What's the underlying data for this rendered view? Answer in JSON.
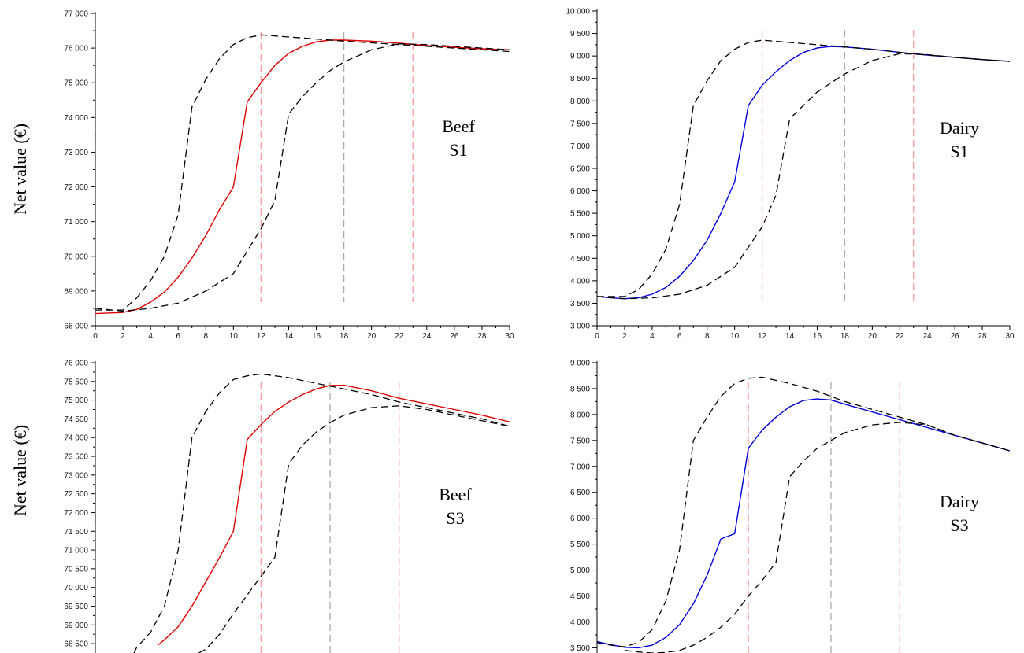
{
  "figure": {
    "ylabel_top": "Net value (€)",
    "ylabel_bottom": "Net value (€)"
  },
  "chart_data": [
    {
      "type": "line",
      "annotation": [
        "Beef",
        "S1"
      ],
      "xlim": [
        0,
        30
      ],
      "ylim": [
        68000,
        77000
      ],
      "xticks": [
        0,
        2,
        4,
        6,
        8,
        10,
        12,
        14,
        16,
        18,
        20,
        22,
        24,
        26,
        28,
        30
      ],
      "yticks": [
        68000,
        69000,
        70000,
        71000,
        72000,
        73000,
        74000,
        75000,
        76000,
        77000
      ],
      "ytick_labels": [
        "68 000",
        "69 000",
        "70 000",
        "71 000",
        "72 000",
        "73 000",
        "74 000",
        "75 000",
        "76 000",
        "77 000"
      ],
      "vlines": [
        {
          "x": 12,
          "color": "#ff9999"
        },
        {
          "x": 18,
          "color": "#aaaaaa"
        },
        {
          "x": 23,
          "color": "#ff9999"
        }
      ],
      "series": [
        {
          "style": "solid",
          "color": "#e00000",
          "x": [
            0,
            2,
            3,
            4,
            5,
            6,
            7,
            8,
            9,
            10,
            11,
            12,
            13,
            14,
            15,
            16,
            17,
            18,
            20,
            22,
            24,
            26,
            28,
            30
          ],
          "y": [
            68350,
            68380,
            68470,
            68680,
            68970,
            69400,
            69950,
            70600,
            71350,
            72000,
            74450,
            75000,
            75500,
            75850,
            76050,
            76180,
            76230,
            76230,
            76200,
            76140,
            76070,
            76020,
            75980,
            75950
          ]
        },
        {
          "style": "dashed",
          "color": "#000000",
          "x": [
            0,
            2,
            3,
            4,
            5,
            6,
            7,
            8,
            9,
            10,
            11,
            12,
            14,
            16,
            18,
            20,
            22,
            24,
            26,
            28,
            30
          ],
          "y": [
            68450,
            68450,
            68800,
            69300,
            70000,
            71200,
            74300,
            75100,
            75700,
            76100,
            76300,
            76380,
            76320,
            76260,
            76200,
            76150,
            76100,
            76050,
            76000,
            75950,
            75900
          ]
        },
        {
          "style": "dashed",
          "color": "#000000",
          "x": [
            0,
            2,
            4,
            6,
            8,
            10,
            12,
            13,
            14,
            15,
            16,
            17,
            18,
            20,
            22,
            24,
            26,
            28,
            30
          ],
          "y": [
            68500,
            68420,
            68500,
            68650,
            69000,
            69500,
            70800,
            71600,
            74100,
            74600,
            75000,
            75350,
            75600,
            75950,
            76120,
            76100,
            76050,
            76000,
            75950
          ]
        }
      ]
    },
    {
      "type": "line",
      "annotation": [
        "Dairy",
        "S1"
      ],
      "xlim": [
        0,
        30
      ],
      "ylim": [
        3000,
        10000
      ],
      "xticks": [
        0,
        2,
        4,
        6,
        8,
        10,
        12,
        14,
        16,
        18,
        20,
        22,
        24,
        26,
        28,
        30
      ],
      "yticks": [
        3000,
        3500,
        4000,
        4500,
        5000,
        5500,
        6000,
        6500,
        7000,
        7500,
        8000,
        8500,
        9000,
        9500,
        10000
      ],
      "ytick_labels": [
        "3 000",
        "3 500",
        "4 000",
        "4 500",
        "5 000",
        "5 500",
        "6 000",
        "6 500",
        "7 000",
        "7 500",
        "8 000",
        "8 500",
        "9 000",
        "9 500",
        "10 000"
      ],
      "vlines": [
        {
          "x": 12,
          "color": "#ff9999"
        },
        {
          "x": 18,
          "color": "#aaaaaa"
        },
        {
          "x": 23,
          "color": "#ff9999"
        }
      ],
      "series": [
        {
          "style": "solid",
          "color": "#0000dd",
          "x": [
            0,
            1,
            2,
            3,
            4,
            5,
            6,
            7,
            8,
            9,
            10,
            11,
            12,
            13,
            14,
            15,
            16,
            17,
            18,
            20,
            22,
            24,
            26,
            28,
            30
          ],
          "y": [
            3650,
            3620,
            3600,
            3620,
            3700,
            3850,
            4100,
            4450,
            4900,
            5500,
            6200,
            7900,
            8350,
            8650,
            8900,
            9080,
            9180,
            9210,
            9200,
            9150,
            9080,
            9020,
            8970,
            8920,
            8880
          ]
        },
        {
          "style": "dashed",
          "color": "#000000",
          "x": [
            0,
            2,
            3,
            4,
            5,
            6,
            7,
            8,
            9,
            10,
            11,
            12,
            14,
            16,
            18,
            20,
            22,
            24,
            26,
            28,
            30
          ],
          "y": [
            3650,
            3650,
            3800,
            4150,
            4700,
            5700,
            7900,
            8450,
            8900,
            9150,
            9300,
            9350,
            9300,
            9250,
            9200,
            9150,
            9080,
            9020,
            8970,
            8920,
            8880
          ]
        },
        {
          "style": "dashed",
          "color": "#000000",
          "x": [
            0,
            2,
            4,
            6,
            8,
            10,
            12,
            13,
            14,
            15,
            16,
            17,
            18,
            20,
            22,
            24,
            26,
            28,
            30
          ],
          "y": [
            3650,
            3600,
            3620,
            3700,
            3900,
            4300,
            5200,
            5900,
            7600,
            7900,
            8200,
            8400,
            8600,
            8900,
            9050,
            9030,
            8970,
            8920,
            8880
          ]
        }
      ]
    },
    {
      "type": "line",
      "annotation": [
        "Beef",
        "S3"
      ],
      "xlim": [
        0,
        30
      ],
      "ylim": [
        68250,
        76000
      ],
      "xticks": [],
      "yticks": [
        68500,
        69000,
        69500,
        70000,
        70500,
        71000,
        71500,
        72000,
        72500,
        73000,
        73500,
        74000,
        74500,
        75000,
        75500,
        76000
      ],
      "ytick_labels": [
        "68 500",
        "69 000",
        "69 500",
        "70 000",
        "70 500",
        "71 000",
        "71 500",
        "72 000",
        "72 500",
        "73 000",
        "73 500",
        "74 000",
        "74 500",
        "75 000",
        "75 500",
        "76 000"
      ],
      "vlines": [
        {
          "x": 12,
          "color": "#ff9999"
        },
        {
          "x": 17,
          "color": "#aaaaaa"
        },
        {
          "x": 22,
          "color": "#ff9999"
        }
      ],
      "series": [
        {
          "style": "solid",
          "color": "#e00000",
          "x": [
            4.5,
            5,
            6,
            7,
            8,
            9,
            10,
            11,
            12,
            13,
            14,
            15,
            16,
            17,
            18,
            20,
            22,
            24,
            26,
            28,
            30
          ],
          "y": [
            68450,
            68600,
            68950,
            69500,
            70150,
            70800,
            71500,
            73950,
            74350,
            74700,
            74950,
            75150,
            75300,
            75390,
            75400,
            75250,
            75050,
            74900,
            74750,
            74600,
            74420
          ]
        },
        {
          "style": "dashed",
          "color": "#000000",
          "x": [
            2.8,
            3,
            4,
            5,
            6,
            7,
            8,
            9,
            10,
            11,
            12,
            14,
            16,
            18,
            20,
            22,
            24,
            26,
            28,
            30
          ],
          "y": [
            68250,
            68400,
            68800,
            69500,
            71000,
            74000,
            74700,
            75200,
            75550,
            75650,
            75700,
            75600,
            75450,
            75300,
            75150,
            74950,
            74800,
            74650,
            74500,
            74300
          ]
        },
        {
          "style": "dashed",
          "color": "#000000",
          "x": [
            7.5,
            8,
            9,
            10,
            11,
            12,
            13,
            14,
            15,
            16,
            17,
            18,
            20,
            22,
            24,
            26,
            28,
            30
          ],
          "y": [
            68250,
            68350,
            68750,
            69300,
            69800,
            70300,
            70800,
            73300,
            73800,
            74150,
            74400,
            74600,
            74800,
            74850,
            74750,
            74600,
            74450,
            74300
          ]
        }
      ]
    },
    {
      "type": "line",
      "annotation": [
        "Dairy",
        "S3"
      ],
      "xlim": [
        0,
        30
      ],
      "ylim": [
        3400,
        9000
      ],
      "xticks": [],
      "yticks": [
        3500,
        4000,
        4500,
        5000,
        5500,
        6000,
        6500,
        7000,
        7500,
        8000,
        8500,
        9000
      ],
      "ytick_labels": [
        "3 500",
        "4 000",
        "4 500",
        "5 000",
        "5 500",
        "6 000",
        "6 500",
        "7 000",
        "7 500",
        "8 000",
        "8 500",
        "9 000"
      ],
      "vlines": [
        {
          "x": 11,
          "color": "#ff9999"
        },
        {
          "x": 17,
          "color": "#aaaaaa"
        },
        {
          "x": 22,
          "color": "#ff9999"
        }
      ],
      "series": [
        {
          "style": "solid",
          "color": "#0000dd",
          "x": [
            0,
            1,
            2,
            3,
            4,
            5,
            6,
            7,
            8,
            9,
            10,
            11,
            12,
            13,
            14,
            15,
            16,
            17,
            18,
            20,
            22,
            24,
            26,
            28,
            30
          ],
          "y": [
            3620,
            3560,
            3510,
            3500,
            3550,
            3700,
            3950,
            4350,
            4900,
            5600,
            5700,
            7350,
            7700,
            7950,
            8150,
            8270,
            8300,
            8280,
            8200,
            8050,
            7900,
            7750,
            7600,
            7450,
            7300
          ]
        },
        {
          "style": "dashed",
          "color": "#000000",
          "x": [
            0,
            1,
            2,
            3,
            4,
            5,
            6,
            7,
            8,
            9,
            10,
            11,
            12,
            14,
            16,
            18,
            20,
            22,
            24,
            26,
            28,
            30
          ],
          "y": [
            3600,
            3550,
            3520,
            3600,
            3850,
            4400,
            5400,
            7500,
            7950,
            8350,
            8600,
            8700,
            8720,
            8600,
            8450,
            8250,
            8100,
            7950,
            7800,
            7600,
            7450,
            7300
          ]
        },
        {
          "style": "dashed",
          "color": "#000000",
          "x": [
            2,
            3,
            4,
            5,
            6,
            7,
            8,
            9,
            10,
            11,
            12,
            13,
            14,
            15,
            16,
            17,
            18,
            20,
            22,
            24,
            26,
            28,
            30
          ],
          "y": [
            3450,
            3420,
            3400,
            3410,
            3450,
            3550,
            3700,
            3900,
            4150,
            4500,
            4800,
            5150,
            6800,
            7100,
            7350,
            7500,
            7650,
            7800,
            7850,
            7800,
            7600,
            7450,
            7300
          ]
        }
      ]
    }
  ]
}
